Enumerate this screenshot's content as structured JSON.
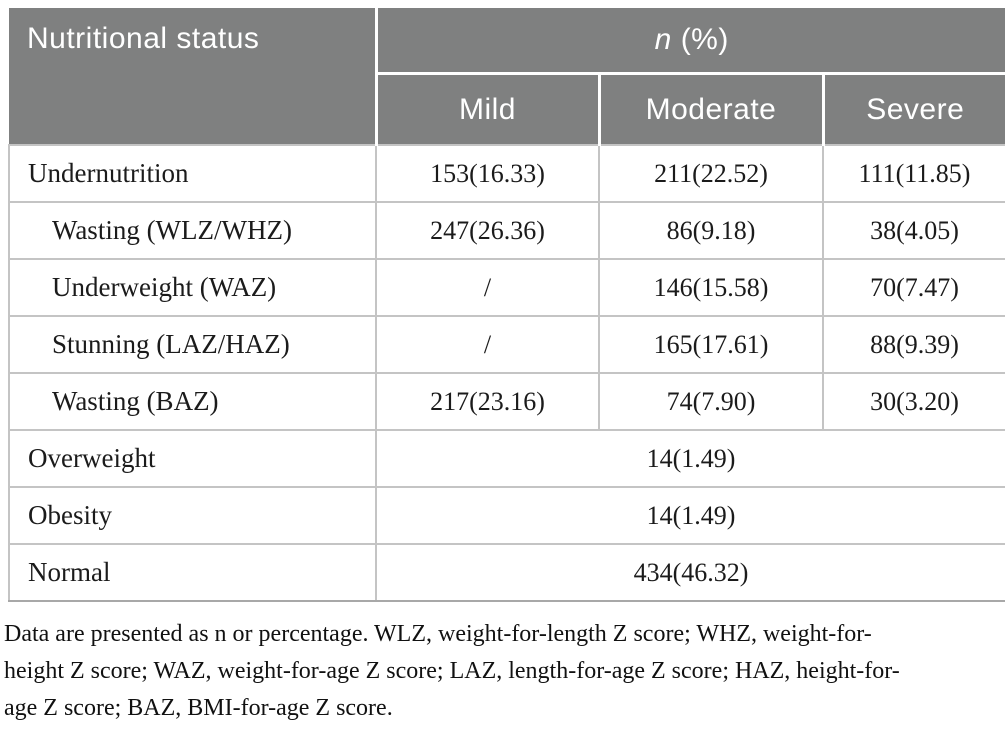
{
  "table": {
    "header": {
      "col1": "Nutritional status",
      "group_n": "n",
      "group_rest": " (%)",
      "subcols": {
        "mild": "Mild",
        "moderate": "Moderate",
        "severe": "Severe"
      }
    },
    "rows": [
      {
        "label": "Undernutrition",
        "indent": false,
        "mild": "153(16.33)",
        "moderate": "211(22.52)",
        "severe": "111(11.85)"
      },
      {
        "label": "Wasting (WLZ/WHZ)",
        "indent": true,
        "mild": "247(26.36)",
        "moderate": "86(9.18)",
        "severe": "38(4.05)"
      },
      {
        "label": "Underweight (WAZ)",
        "indent": true,
        "mild": "/",
        "moderate": "146(15.58)",
        "severe": "70(7.47)"
      },
      {
        "label": "Stunning (LAZ/HAZ)",
        "indent": true,
        "mild": "/",
        "moderate": "165(17.61)",
        "severe": "88(9.39)"
      },
      {
        "label": "Wasting (BAZ)",
        "indent": true,
        "mild": "217(23.16)",
        "moderate": "74(7.90)",
        "severe": "30(3.20)"
      }
    ],
    "merged_rows": [
      {
        "label": "Overweight",
        "value": "14(1.49)"
      },
      {
        "label": "Obesity",
        "value": "14(1.49)"
      },
      {
        "label": "Normal",
        "value": "434(46.32)"
      }
    ]
  },
  "footnote": {
    "lines": [
      "Data are presented as n or percentage. WLZ, weight-for-length Z score; WHZ, weight-for-",
      "height Z score; WAZ, weight-for-age Z score; LAZ, length-for-age Z score; HAZ, height-for-",
      "age Z score; BAZ, BMI-for-age Z score."
    ]
  },
  "colors": {
    "header_bg": "#7f8080",
    "header_text": "#ffffff",
    "body_border": "#c4c4c4",
    "bottom_border": "#a8a8a8",
    "body_text": "#1b1b1b"
  }
}
